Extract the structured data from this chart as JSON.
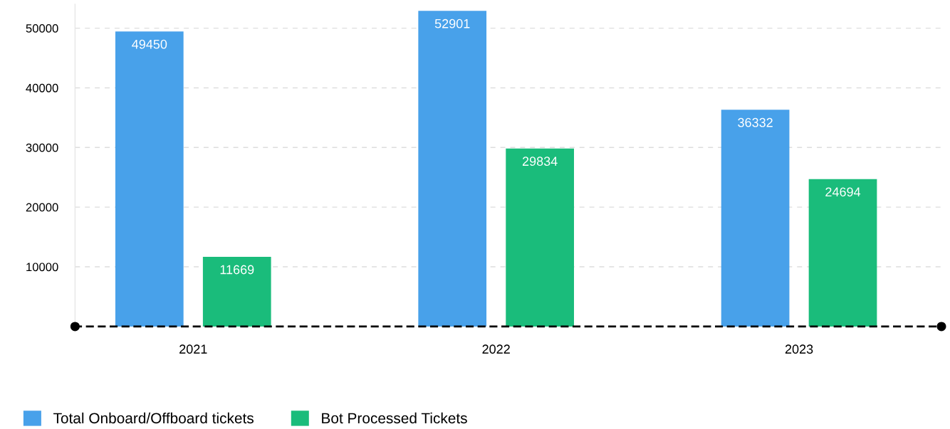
{
  "chart_data": {
    "type": "bar",
    "categories": [
      "2021",
      "2022",
      "2023"
    ],
    "series": [
      {
        "name": "Total Onboard/Offboard tickets",
        "color": "#48a1ea",
        "values": [
          49450,
          52901,
          36332
        ]
      },
      {
        "name": "Bot Processed Tickets",
        "color": "#1abc7b",
        "values": [
          11669,
          29834,
          24694
        ]
      }
    ],
    "ylim": [
      0,
      54000
    ],
    "yticks": [
      10000,
      20000,
      30000,
      40000,
      50000
    ],
    "grid": "y",
    "legend": "bottom left",
    "data_labels": true
  }
}
